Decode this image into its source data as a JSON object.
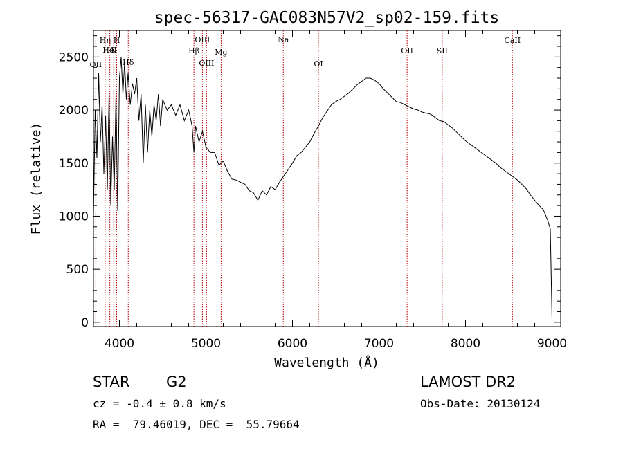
{
  "chart_data": {
    "type": "line",
    "title": "spec-56317-GAC083N57V2_sp02-159.fits",
    "xlabel": "Wavelength (Å)",
    "ylabel": "Flux (relative)",
    "xlim": [
      3700,
      9100
    ],
    "ylim": [
      -40,
      2750
    ],
    "grid": false,
    "x_ticks": [
      "4000",
      "5000",
      "6000",
      "7000",
      "8000",
      "9000"
    ],
    "y_ticks": [
      "0",
      "500",
      "1000",
      "1500",
      "2000",
      "2500"
    ],
    "x_tick_values": [
      4000,
      5000,
      6000,
      7000,
      8000,
      9000
    ],
    "y_tick_values": [
      0,
      500,
      1000,
      1500,
      2000,
      2500
    ],
    "spectral_lines": [
      {
        "name": "OII",
        "wavelength": 3727
      },
      {
        "name": "Hη",
        "wavelength": 3835
      },
      {
        "name": "HeI",
        "wavelength": 3889
      },
      {
        "name": "K",
        "wavelength": 3934
      },
      {
        "name": "H",
        "wavelength": 3968
      },
      {
        "name": "Hδ",
        "wavelength": 4102
      },
      {
        "name": "Hβ",
        "wavelength": 4861
      },
      {
        "name": "OIII",
        "wavelength": 4959
      },
      {
        "name": "OIII",
        "wavelength": 5007
      },
      {
        "name": "Mg",
        "wavelength": 5175
      },
      {
        "name": "Na",
        "wavelength": 5894
      },
      {
        "name": "OI",
        "wavelength": 6300
      },
      {
        "name": "OII",
        "wavelength": 7325
      },
      {
        "name": "SII",
        "wavelength": 7731
      },
      {
        "name": "CaII",
        "wavelength": 8542
      }
    ],
    "series": [
      {
        "x": [
          3700,
          3720,
          3740,
          3760,
          3780,
          3800,
          3820,
          3840,
          3860,
          3880,
          3900,
          3920,
          3940,
          3960,
          3980,
          4000,
          4020,
          4040,
          4060,
          4080,
          4100,
          4125,
          4150,
          4175,
          4200,
          4225,
          4250,
          4275,
          4300,
          4325,
          4350,
          4375,
          4400,
          4425,
          4450,
          4475,
          4500,
          4550,
          4600,
          4650,
          4700,
          4750,
          4800,
          4840,
          4861,
          4880,
          4920,
          4960,
          5000,
          5050,
          5100,
          5150,
          5200,
          5250,
          5300,
          5350,
          5400,
          5450,
          5500,
          5550,
          5600,
          5650,
          5700,
          5750,
          5800,
          5850,
          5900,
          5950,
          6000,
          6050,
          6100,
          6150,
          6200,
          6250,
          6300,
          6350,
          6400,
          6450,
          6500,
          6550,
          6600,
          6650,
          6700,
          6750,
          6800,
          6850,
          6900,
          6950,
          7000,
          7050,
          7100,
          7150,
          7200,
          7250,
          7300,
          7350,
          7400,
          7450,
          7500,
          7550,
          7600,
          7650,
          7700,
          7750,
          7800,
          7850,
          7900,
          7950,
          8000,
          8050,
          8100,
          8150,
          8200,
          8250,
          8300,
          8350,
          8400,
          8450,
          8500,
          8550,
          8600,
          8650,
          8700,
          8750,
          8800,
          8850,
          8900,
          8950,
          8980,
          9000
        ],
        "y": [
          1000,
          2000,
          1550,
          2350,
          1700,
          2050,
          1400,
          1950,
          1250,
          2150,
          1100,
          1750,
          1250,
          2150,
          1050,
          2300,
          2500,
          2150,
          2450,
          2100,
          2350,
          2050,
          2250,
          2150,
          2300,
          1900,
          2150,
          1500,
          2050,
          1600,
          2000,
          1750,
          2050,
          1900,
          2150,
          1850,
          2100,
          2000,
          2050,
          1950,
          2050,
          1900,
          2000,
          1850,
          1600,
          1850,
          1700,
          1800,
          1650,
          1600,
          1600,
          1480,
          1520,
          1420,
          1350,
          1340,
          1320,
          1300,
          1240,
          1220,
          1150,
          1240,
          1200,
          1280,
          1250,
          1320,
          1380,
          1440,
          1500,
          1570,
          1600,
          1650,
          1700,
          1780,
          1850,
          1930,
          1990,
          2050,
          2080,
          2100,
          2130,
          2160,
          2200,
          2240,
          2270,
          2300,
          2300,
          2280,
          2250,
          2200,
          2160,
          2120,
          2080,
          2070,
          2050,
          2030,
          2010,
          2000,
          1980,
          1970,
          1960,
          1930,
          1900,
          1890,
          1860,
          1830,
          1790,
          1750,
          1710,
          1680,
          1650,
          1620,
          1590,
          1560,
          1530,
          1500,
          1460,
          1430,
          1400,
          1370,
          1340,
          1300,
          1260,
          1200,
          1150,
          1100,
          1060,
          960,
          880,
          30
        ]
      }
    ]
  },
  "info": {
    "object_type": "STAR",
    "subclass": "G2",
    "survey": "LAMOST DR2",
    "redshift_line": "cz = -0.4 ± 0.8 km/s",
    "obs_date_line": "Obs-Date: 20130124",
    "coords_line": "RA =  79.46019, DEC =  55.79664"
  }
}
